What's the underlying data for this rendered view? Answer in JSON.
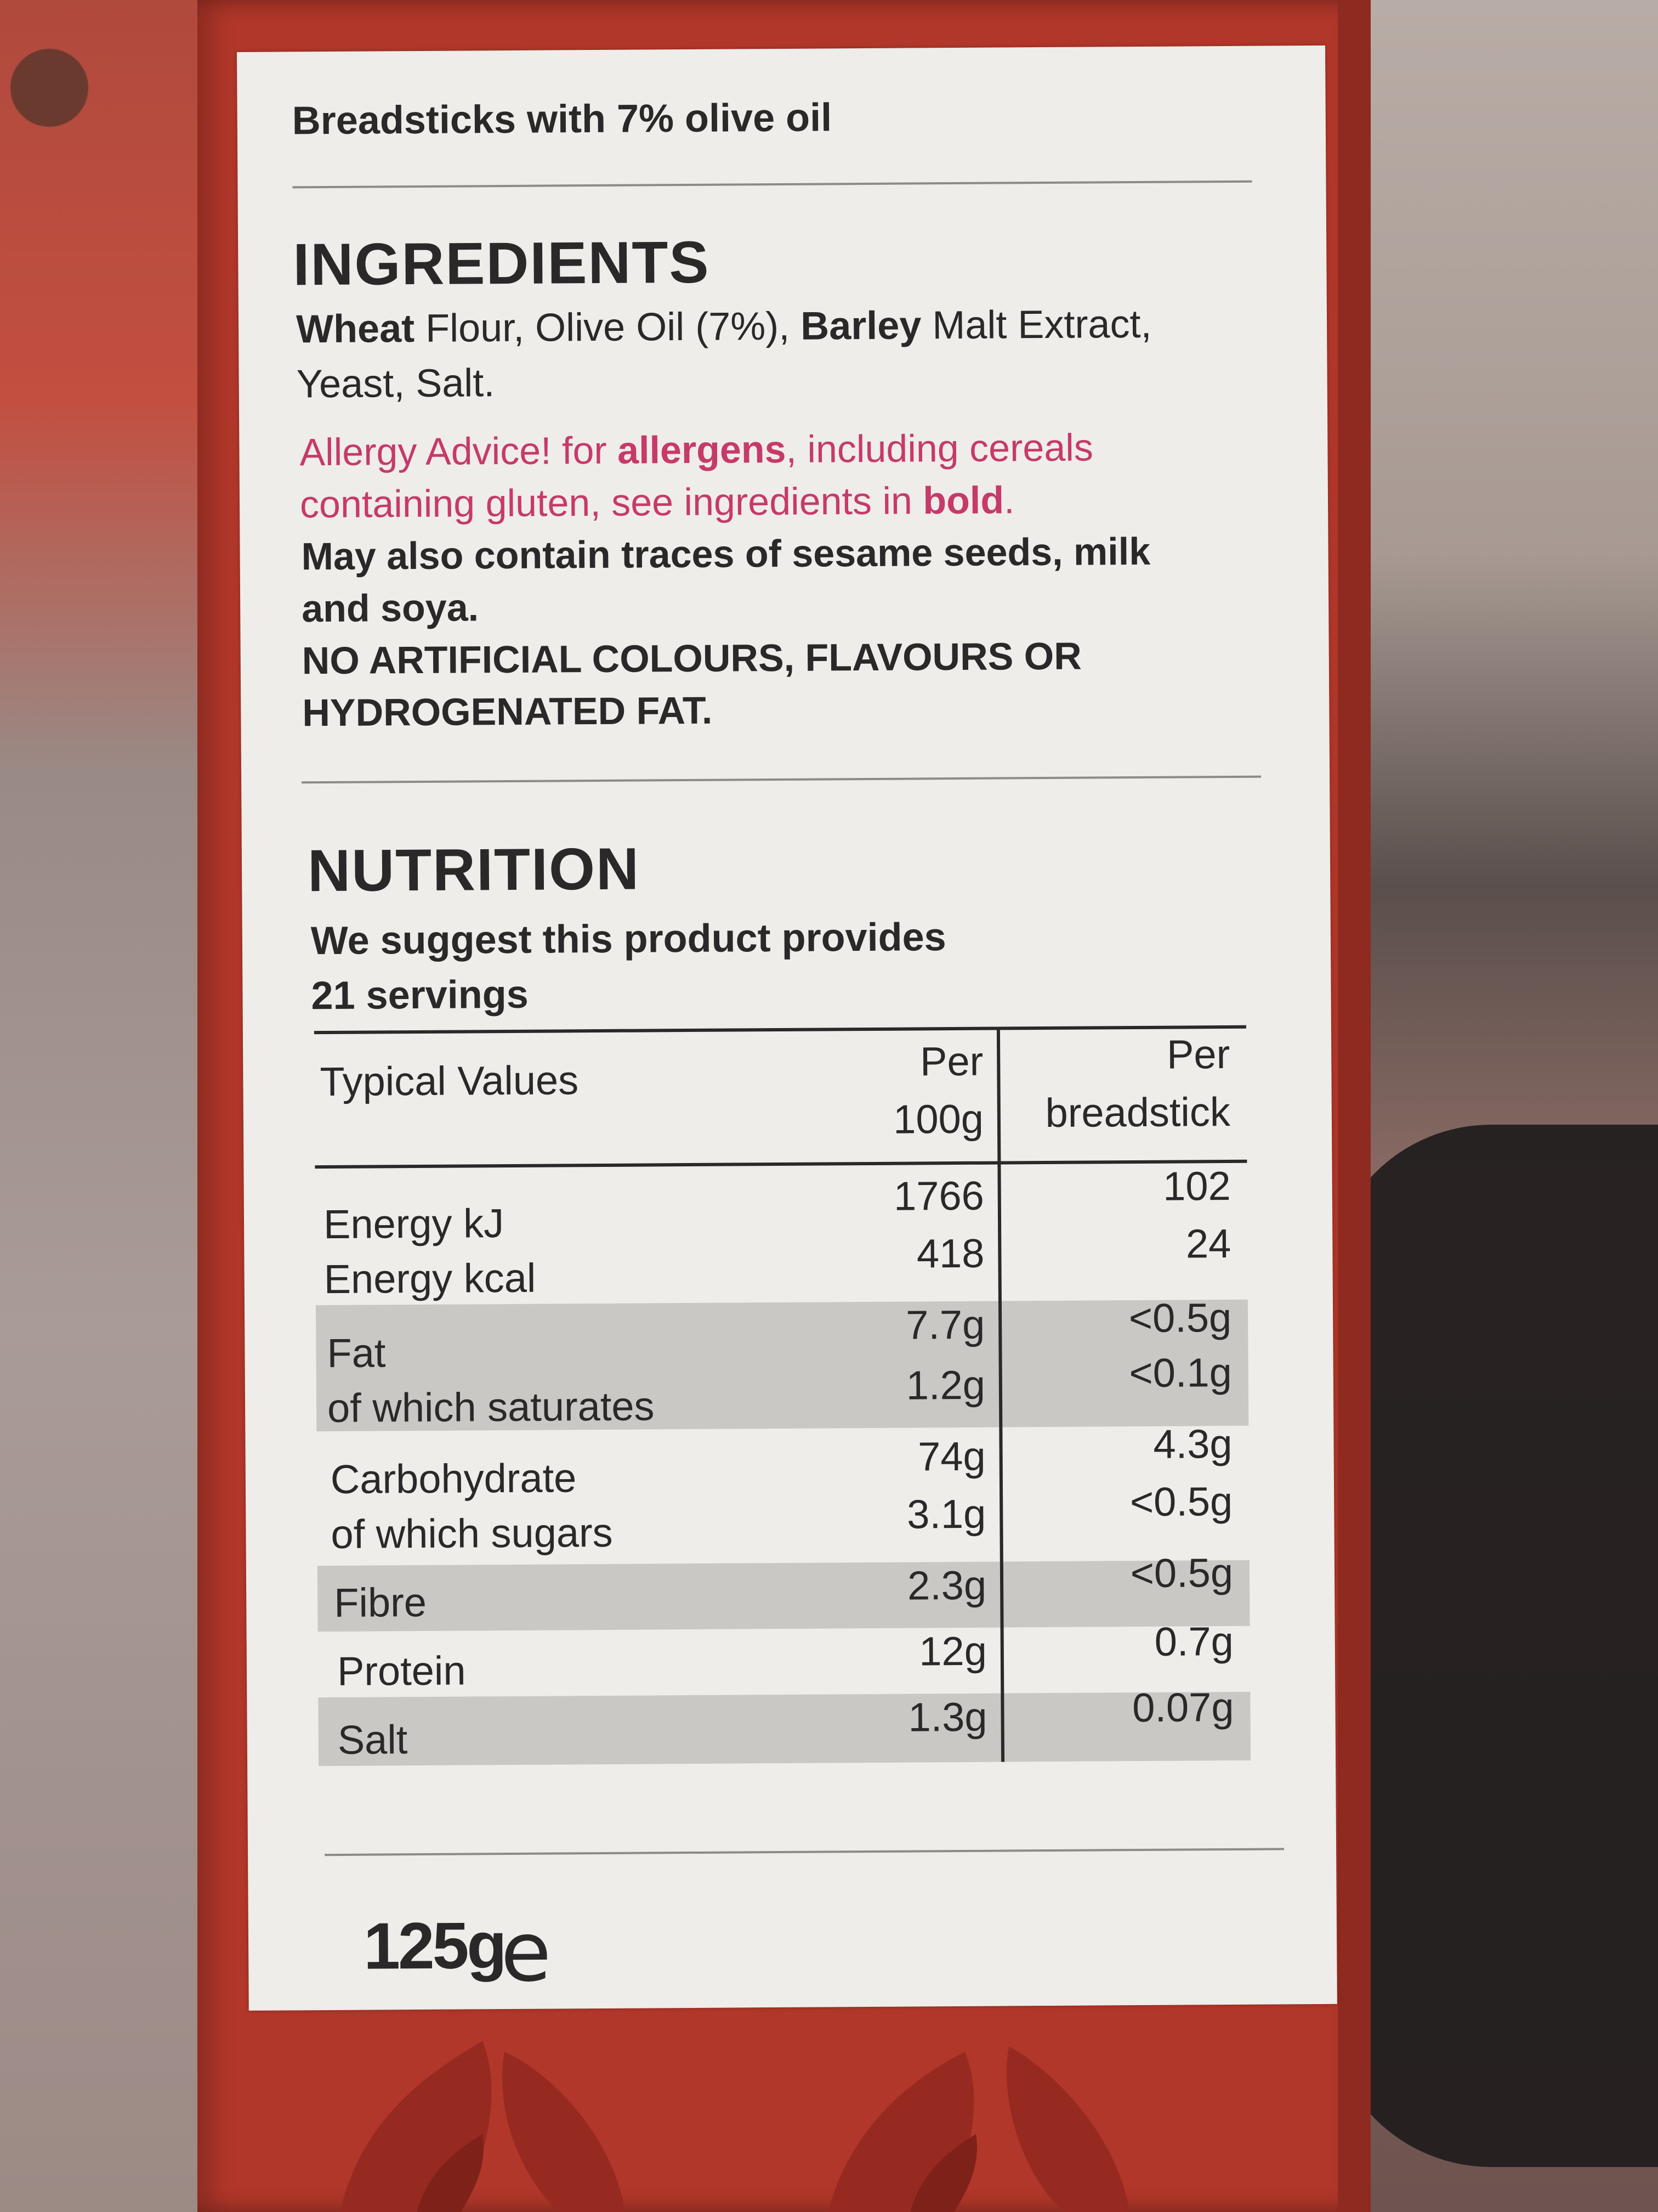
{
  "product": {
    "name": "Breadsticks with 7% olive oil",
    "weight": "125g",
    "estimated_mark": "e"
  },
  "ingredients": {
    "heading": "INGREDIENTS",
    "line1": {
      "b1": "Wheat",
      "t1": " Flour, Olive Oil (7%), ",
      "b2": "Barley",
      "t2": " Malt Extract,"
    },
    "line2": "Yeast, Salt.",
    "allergy1": {
      "t1": "Allergy Advice! for ",
      "b1": "allergens",
      "t2": ", including cereals"
    },
    "allergy2": {
      "t1": "containing gluten, see ingredients in ",
      "b1": "bold",
      "t2": "."
    },
    "traces1": "May also contain traces of sesame seeds, milk",
    "traces2": "and soya.",
    "claims1": "NO ARTIFICIAL COLOURS, FLAVOURS OR",
    "claims2": "HYDROGENATED FAT."
  },
  "nutrition": {
    "heading": "NUTRITION",
    "servings1": "We suggest this product provides",
    "servings2": "21 servings",
    "columns": {
      "label": "Typical Values",
      "per100_a": "Per",
      "per100_b": "100g",
      "perstick_a": "Per",
      "perstick_b": "breadstick"
    },
    "rows": [
      {
        "name": "Energy kJ",
        "per100g": "1766",
        "perstick": "102"
      },
      {
        "name": "Energy kcal",
        "per100g": "418",
        "perstick": "24"
      },
      {
        "name": "Fat",
        "per100g": "7.7g",
        "perstick": "<0.5g"
      },
      {
        "name": "of which saturates",
        "per100g": "1.2g",
        "perstick": "<0.1g"
      },
      {
        "name": "Carbohydrate",
        "per100g": "74g",
        "perstick": "4.3g"
      },
      {
        "name": "of which sugars",
        "per100g": "3.1g",
        "perstick": "<0.5g"
      },
      {
        "name": "Fibre",
        "per100g": "2.3g",
        "perstick": "<0.5g"
      },
      {
        "name": "Protein",
        "per100g": "12g",
        "perstick": "0.7g"
      },
      {
        "name": "Salt",
        "per100g": "1.3g",
        "perstick": "0.07g"
      }
    ]
  }
}
